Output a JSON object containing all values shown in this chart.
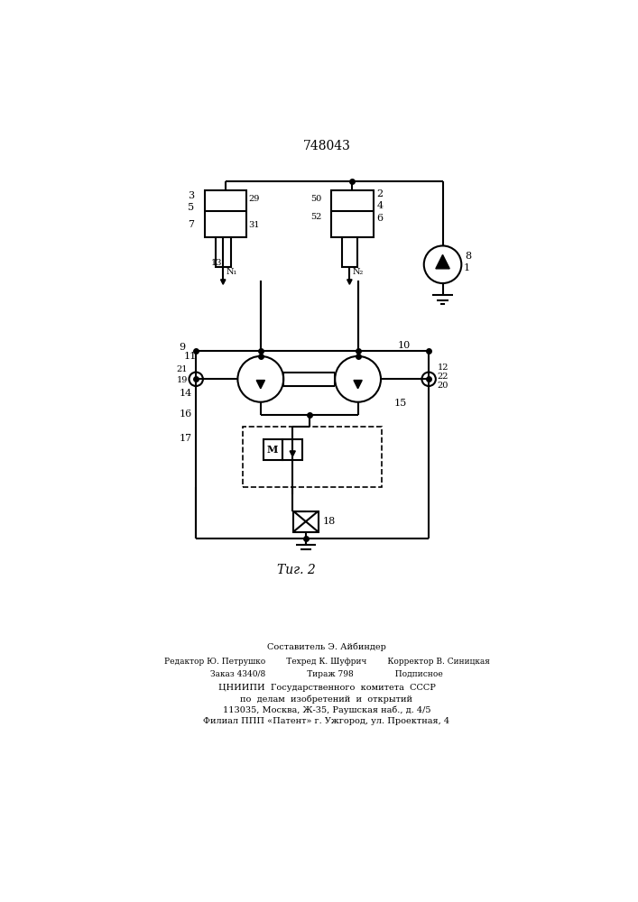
{
  "title": "748043",
  "fig_label": "Τиг. 2",
  "background_color": "#ffffff",
  "line_color": "#000000",
  "line_width": 1.5,
  "footer_lines": [
    "Составитель Э. Айбиндер",
    "Редактор Ю. Петрушко        Техред К. Шуфрич        Корректор В. Синицкая",
    "Заказ 4340/8                Тираж 798                Подписное",
    "ЦНИИПИ  Государственного  комитета  СССР",
    "по  делам  изобретений  и  открытий",
    "113035, Москва, Ж-35, Раушская наб., д. 4/5",
    "Филиал ППП «Патент» г. Ужгород, ул. Проектная, 4"
  ]
}
